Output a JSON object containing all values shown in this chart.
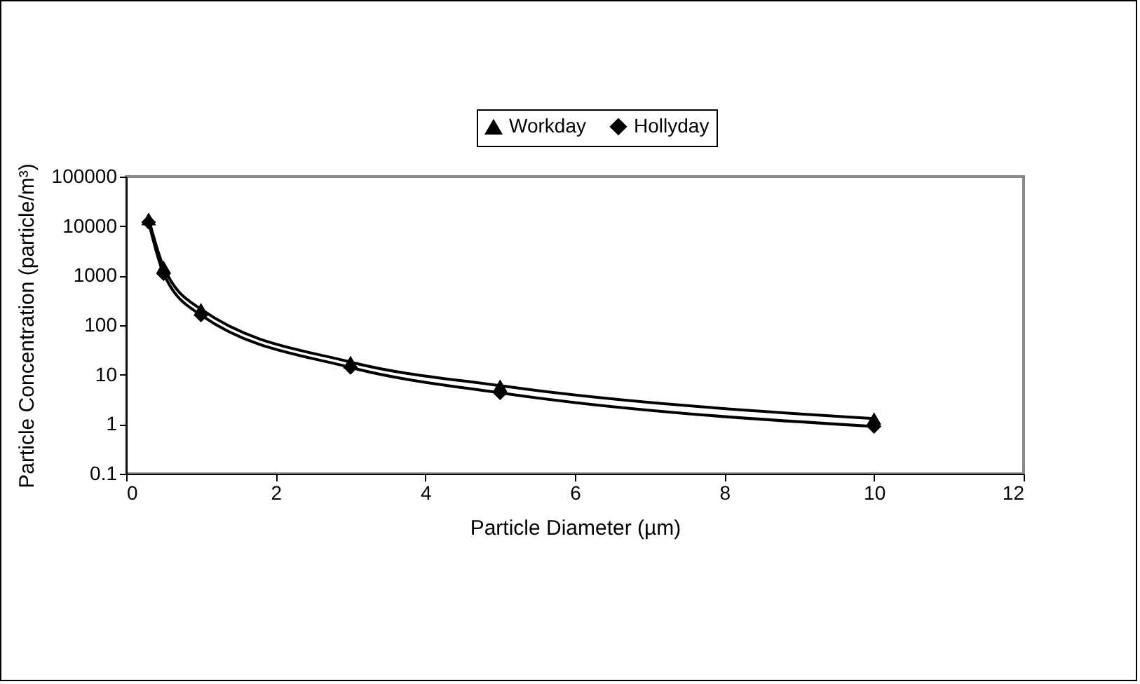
{
  "chart_data": {
    "type": "line",
    "xlabel": "Particle Diameter (µm)",
    "ylabel": "Particle Concentration (particle/m³)",
    "x": [
      0.3,
      0.5,
      1,
      3,
      5,
      10
    ],
    "series": [
      {
        "name": "Workday",
        "color": "#000000",
        "marker": "triangle",
        "values": [
          14000,
          1500,
          210,
          18,
          6,
          1.3
        ]
      },
      {
        "name": "Hollyday",
        "color": "#000000",
        "marker": "diamond",
        "values": [
          12000,
          1100,
          160,
          14,
          4.3,
          0.9
        ]
      }
    ],
    "log": "y",
    "xlim": [
      0,
      12
    ],
    "xticks": [
      0,
      2,
      4,
      6,
      8,
      10,
      12
    ],
    "ylim": [
      0.1,
      100000
    ],
    "yticks": [
      0.1,
      1,
      10,
      100,
      1000,
      10000,
      100000
    ],
    "legend": "top",
    "grid": false,
    "line_style": "solid"
  }
}
